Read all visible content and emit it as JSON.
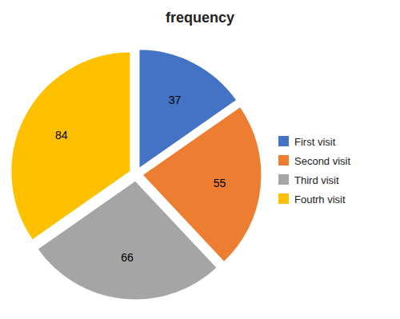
{
  "chart_data": {
    "type": "pie",
    "title": "frequency",
    "categories": [
      "First visit",
      "Second visit",
      "Third visit",
      "Foutrh visit"
    ],
    "values": [
      37,
      55,
      66,
      84
    ],
    "colors": [
      "#4472C4",
      "#ED7D31",
      "#A5A5A5",
      "#FFC000"
    ],
    "data_labels": true,
    "legend": "right"
  }
}
